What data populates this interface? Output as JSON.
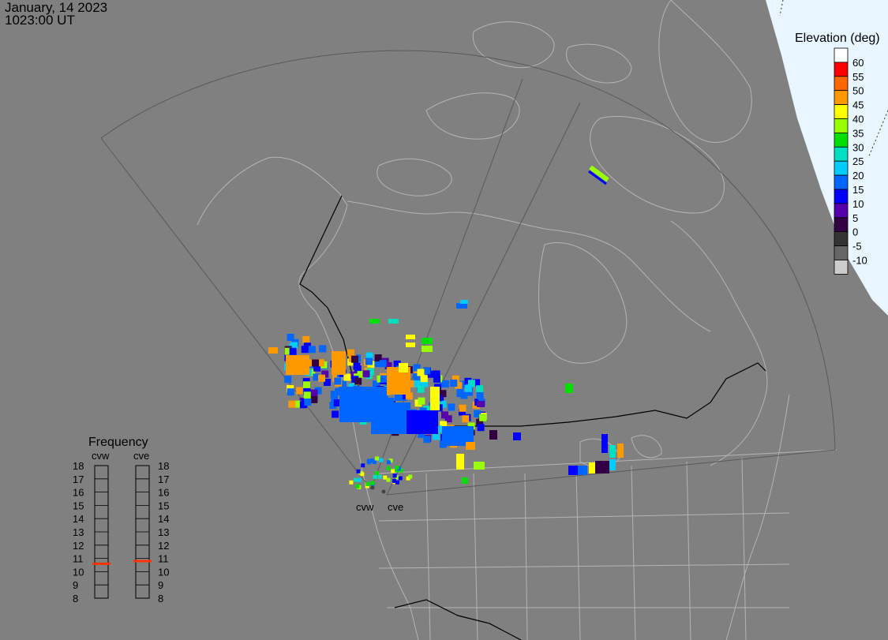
{
  "header": {
    "date": "January, 14 2023",
    "time": "1023:00 UT"
  },
  "colorbar": {
    "title": "Elevation (deg)",
    "entries": [
      {
        "label": "",
        "color": "#ffffff"
      },
      {
        "label": "60",
        "color": "#ff0000"
      },
      {
        "label": "55",
        "color": "#ff6600"
      },
      {
        "label": "50",
        "color": "#ff9900"
      },
      {
        "label": "45",
        "color": "#ffff00"
      },
      {
        "label": "40",
        "color": "#99ff00"
      },
      {
        "label": "35",
        "color": "#00e000"
      },
      {
        "label": "30",
        "color": "#00e0c0"
      },
      {
        "label": "25",
        "color": "#00ccff"
      },
      {
        "label": "20",
        "color": "#0066ff"
      },
      {
        "label": "15",
        "color": "#0000ff"
      },
      {
        "label": "10",
        "color": "#5500aa"
      },
      {
        "label": "5",
        "color": "#330044"
      },
      {
        "label": "0",
        "color": "#333333"
      },
      {
        "label": "-5",
        "color": "#666666"
      },
      {
        "label": "-10",
        "color": "#cccccc"
      }
    ]
  },
  "frequency": {
    "title": "Frequency",
    "radars": [
      {
        "name": "cvw",
        "value_mhz": 10.6
      },
      {
        "name": "cve",
        "value_mhz": 10.8
      }
    ],
    "ticks": [
      "18",
      "17",
      "16",
      "15",
      "14",
      "13",
      "12",
      "11",
      "10",
      "9",
      "8"
    ],
    "marker_color": "#ff3300"
  },
  "sites": [
    {
      "name": "cvw"
    },
    {
      "name": "cve"
    }
  ],
  "colors": {
    "background": "#808080",
    "land_outline": "#b4b4b4",
    "border": "#000000",
    "fov": "#595959",
    "night_region": "#e8f6ff"
  }
}
